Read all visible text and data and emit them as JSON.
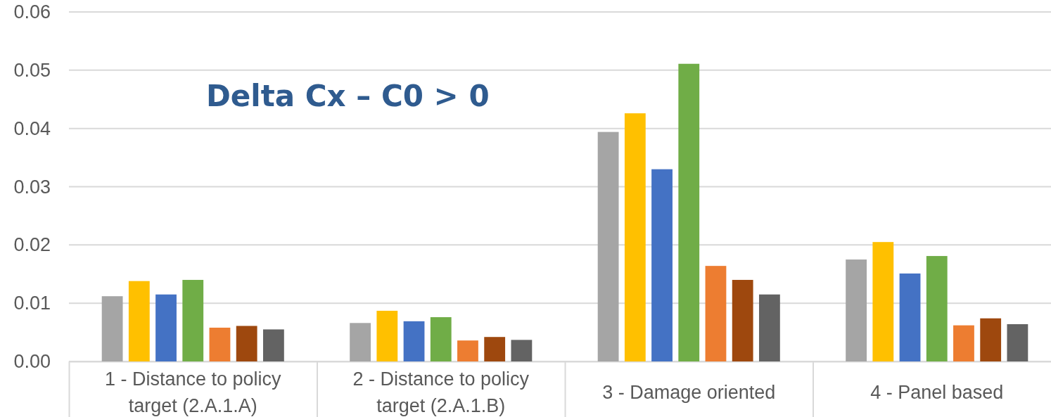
{
  "chart_data": {
    "type": "bar",
    "title": "Delta Cx – C0 > 0",
    "categories": [
      "1 - Distance to policy target (2.A.1.A)",
      "2 - Distance to policy target (2.A.1.B)",
      "3 - Damage oriented",
      "4 - Panel based"
    ],
    "series": [
      {
        "color": "#a5a5a5",
        "values": [
          0.0112,
          0.0066,
          0.0394,
          0.0175
        ]
      },
      {
        "color": "#ffc000",
        "values": [
          0.0138,
          0.0087,
          0.0426,
          0.0205
        ]
      },
      {
        "color": "#4472c4",
        "values": [
          0.0115,
          0.0069,
          0.033,
          0.0151
        ]
      },
      {
        "color": "#70ad47",
        "values": [
          0.014,
          0.0076,
          0.0511,
          0.0181
        ]
      },
      {
        "color": "#ed7d31",
        "values": [
          0.0058,
          0.0036,
          0.0164,
          0.0062
        ]
      },
      {
        "color": "#9e480e",
        "values": [
          0.0061,
          0.0042,
          0.014,
          0.0074
        ]
      },
      {
        "color": "#636363",
        "values": [
          0.0055,
          0.0037,
          0.0115,
          0.0064
        ]
      }
    ],
    "ylim": [
      0,
      0.06
    ],
    "yticks": [
      {
        "value": 0,
        "label": "0.00"
      },
      0.01,
      0.02,
      0.03,
      0.04,
      0.05,
      0.06
    ],
    "grid": "y"
  }
}
